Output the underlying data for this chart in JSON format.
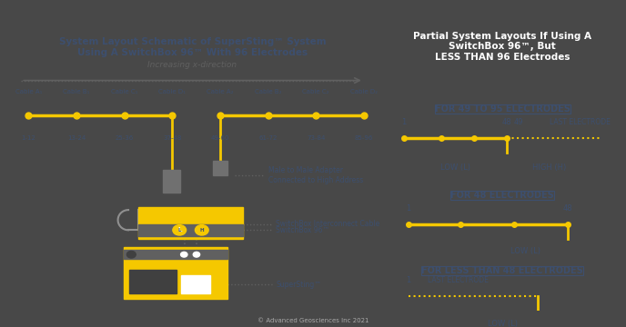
{
  "bg_color": "#484848",
  "left_panel_bg": "#ffffff",
  "right_panel_bg": "#ffffff",
  "title_color": "#ffffff",
  "dark_text": "#3d4f6e",
  "yellow": "#f5c800",
  "gray": "#606060",
  "left_title": "System Layout Schematic of SuperSting™ System\nUsing A SwitchBox 96™ With 96 Electrodes",
  "right_title": "Partial System Layouts If Using A\nSwitchBox 96™, But\nLESS THAN 96 Electrodes",
  "cable_labels": [
    "Cable A₁",
    "Cable B₁",
    "Cable C₁",
    "Cable D₁",
    "Cable A₂",
    "Cable B₂",
    "Cable C₂",
    "Cable D₂"
  ],
  "range_labels": [
    "1-12",
    "13-24",
    "25-36",
    "37-48",
    "49-60",
    "61-72",
    "73-84",
    "85-96"
  ],
  "increasing_label": "Increasing x-direction",
  "annotation_adapter": "Male to Male Adapter\nConnected to High Address",
  "annotation_switchbox": "SwitchBox 96™",
  "annotation_cable": "SwitchBox Interconnect Cable",
  "annotation_supersting": "SuperSting™",
  "copyright": "© Advanced Geosciences Inc 2021",
  "section1_title": "FOR 49 TO 95 ELECTRODES",
  "section2_title": "FOR 48 ELECTRODES",
  "section3_title": "FOR LESS THAN 48 ELECTRODES"
}
